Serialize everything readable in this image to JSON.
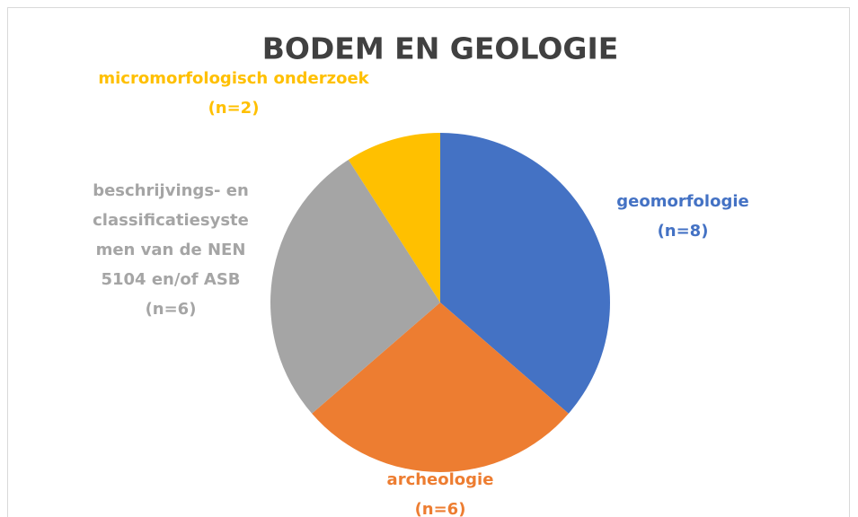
{
  "chart_data": {
    "type": "pie",
    "title": "BODEM EN GEOLOGIE",
    "categories": [
      "geomorfologie",
      "archeologie",
      "beschrijvings- en classificatiesystemen van de NEN 5104 en/of ASB",
      "micromorfologisch onderzoek"
    ],
    "values": [
      8,
      6,
      6,
      2
    ],
    "value_labels": [
      "(n=8)",
      "(n=6)",
      "(n=6)",
      "(n=2)"
    ],
    "colors": [
      "#4472c4",
      "#ed7d31",
      "#a5a5a5",
      "#ffc000"
    ]
  }
}
